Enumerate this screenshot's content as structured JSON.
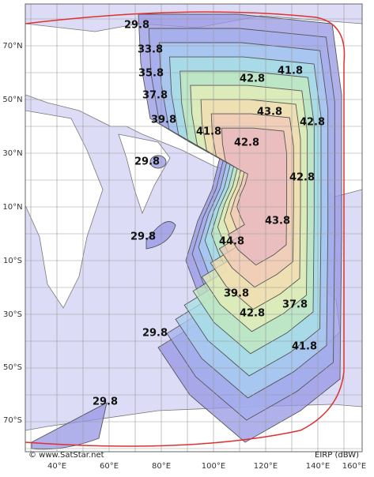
{
  "map": {
    "lat_labels": [
      "70°N",
      "50°N",
      "30°N",
      "10°N",
      "10°S",
      "30°S",
      "50°S",
      "70°S"
    ],
    "lon_labels": [
      "40°E",
      "60°E",
      "80°E",
      "100°E",
      "120°E",
      "140°E",
      "160°E"
    ],
    "contour_labels": [
      29.8,
      33.8,
      35.8,
      37.8,
      39.8,
      41.8,
      42.8,
      41.8,
      43.8,
      42.8,
      42.8,
      29.8,
      42.8,
      43.8,
      29.8,
      44.8,
      39.8,
      37.8,
      42.8,
      41.8,
      29.8,
      29.8
    ],
    "credit": "© www.SatStar.net",
    "unit_label": "EIRP (dBW)"
  }
}
